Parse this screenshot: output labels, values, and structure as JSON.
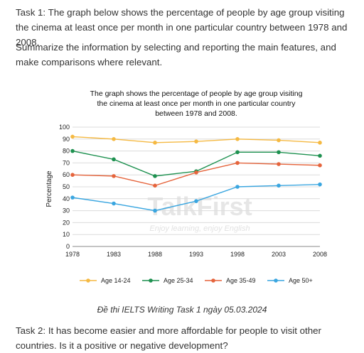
{
  "task1_text": "Task 1: The graph below shows the percentage of people by age group visiting the cinema at least once per month in one particular country between 1978 and 2008.",
  "summary_text": "Summarize the information by selecting and reporting the main features, and make comparisons where relevant.",
  "caption": "Đề thi IELTS Writing Task 1 ngày 05.03.2024",
  "task2_text": "Task 2: It has become easier and more affordable for people to visit other countries. Is it a positive or negative development?",
  "watermark": {
    "brand": "TalkFirst",
    "slogan": "Enjoy learning, enjoy English"
  },
  "chart_data": {
    "type": "line",
    "title": "The graph shows the percentage of people by age group visiting the cinema at least once per month in one particular country between 1978 and 2008.",
    "title_lines": [
      "The graph shows the percentage of people by age group visiting",
      "the cinema at least once per month in one particular country",
      "between 1978 and 2008."
    ],
    "xlabel": "",
    "ylabel": "Percentage",
    "x": [
      "1978",
      "1983",
      "1988",
      "1993",
      "1998",
      "2003",
      "2008"
    ],
    "ylim": [
      0,
      100
    ],
    "yticks": [
      0,
      10,
      20,
      30,
      40,
      50,
      60,
      70,
      80,
      90,
      100
    ],
    "grid": true,
    "legend_position": "bottom",
    "series": [
      {
        "name": "Age 14-24",
        "color": "#f5b942",
        "values": [
          92,
          90,
          87,
          88,
          90,
          89,
          87
        ]
      },
      {
        "name": "Age 25-34",
        "color": "#1e9150",
        "values": [
          80,
          73,
          59,
          63,
          79,
          79,
          76
        ]
      },
      {
        "name": "Age 35-49",
        "color": "#e5643c",
        "values": [
          60,
          59,
          51,
          62,
          70,
          69,
          68
        ]
      },
      {
        "name": "Age 50+",
        "color": "#3aa6e0",
        "values": [
          41,
          36,
          30,
          38,
          50,
          51,
          52
        ]
      }
    ]
  }
}
